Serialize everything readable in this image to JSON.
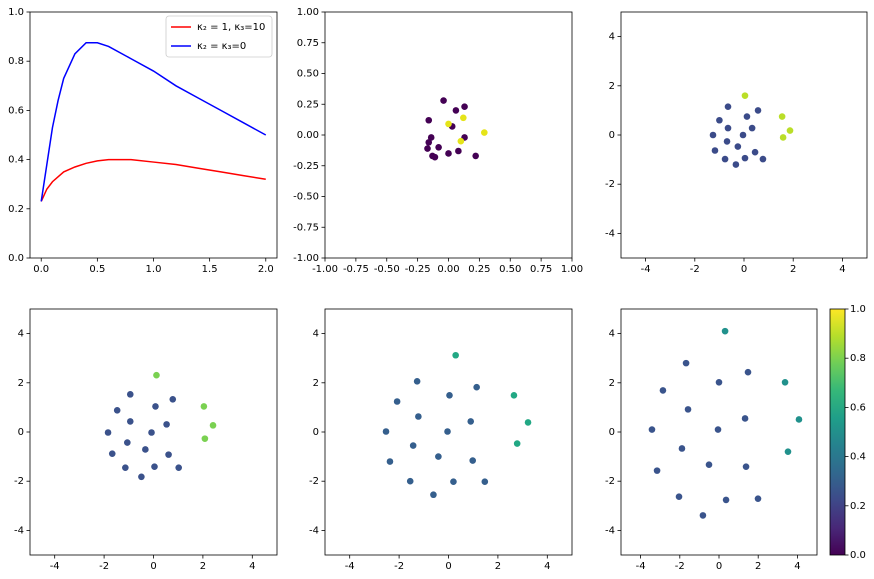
{
  "chart_data": [
    {
      "type": "line",
      "x": [
        0,
        0.05,
        0.1,
        0.15,
        0.2,
        0.3,
        0.4,
        0.5,
        0.6,
        0.8,
        1.0,
        1.2,
        1.4,
        1.6,
        1.8,
        2.0
      ],
      "series": [
        {
          "name": "κ₂ = 1, κ₃=10",
          "color": "#ff0000",
          "values": [
            0.23,
            0.28,
            0.31,
            0.33,
            0.35,
            0.37,
            0.385,
            0.395,
            0.4,
            0.4,
            0.39,
            0.38,
            0.365,
            0.35,
            0.335,
            0.32
          ]
        },
        {
          "name": "κ₂ = κ₃=0",
          "color": "#0000ff",
          "values": [
            0.23,
            0.38,
            0.53,
            0.64,
            0.73,
            0.83,
            0.875,
            0.875,
            0.86,
            0.81,
            0.76,
            0.7,
            0.65,
            0.6,
            0.55,
            0.5
          ]
        }
      ],
      "xlim": [
        -0.1,
        2.1
      ],
      "ylim": [
        0,
        1
      ],
      "xticks": [
        {
          "value": 0,
          "label": "0.0"
        },
        {
          "value": 0.5,
          "label": "0.5"
        },
        {
          "value": 1,
          "label": "1.0"
        },
        {
          "value": 1.5,
          "label": "1.5"
        },
        {
          "value": 2,
          "label": "2.0"
        }
      ],
      "yticks": [
        {
          "value": 0,
          "label": "0.0"
        },
        {
          "value": 0.2,
          "label": "0.2"
        },
        {
          "value": 0.4,
          "label": "0.4"
        },
        {
          "value": 0.6,
          "label": "0.6"
        },
        {
          "value": 0.8,
          "label": "0.8"
        },
        {
          "value": 1,
          "label": "1.0"
        }
      ],
      "legend": "upper right"
    },
    {
      "type": "scatter",
      "series": [
        {
          "color": "#440154",
          "x": [
            -0.04,
            0.06,
            0.13,
            -0.16,
            -0.14,
            -0.16,
            -0.17,
            -0.13,
            -0.11,
            -0.08,
            0.0,
            0.08,
            0.22,
            0.13,
            0.03
          ],
          "y": [
            0.28,
            0.2,
            0.23,
            0.12,
            -0.02,
            -0.06,
            -0.11,
            -0.17,
            -0.18,
            -0.1,
            -0.15,
            -0.13,
            -0.17,
            -0.02,
            0.07
          ]
        },
        {
          "color": "#e5e419",
          "x": [
            0.0,
            0.12,
            0.29,
            0.1
          ],
          "y": [
            0.09,
            0.14,
            0.02,
            -0.05
          ]
        }
      ],
      "xlim": [
        -1,
        1
      ],
      "ylim": [
        -1,
        1
      ],
      "xticks": [
        {
          "value": -1,
          "label": "-1.00"
        },
        {
          "value": -0.75,
          "label": "-0.75"
        },
        {
          "value": -0.5,
          "label": "-0.50"
        },
        {
          "value": -0.25,
          "label": "-0.25"
        },
        {
          "value": 0,
          "label": "0.00"
        },
        {
          "value": 0.25,
          "label": "0.25"
        },
        {
          "value": 0.5,
          "label": "0.50"
        },
        {
          "value": 0.75,
          "label": "0.75"
        },
        {
          "value": 1,
          "label": "1.00"
        }
      ],
      "yticks": [
        {
          "value": -1,
          "label": "-1.00"
        },
        {
          "value": -0.75,
          "label": "-0.75"
        },
        {
          "value": -0.5,
          "label": "-0.50"
        },
        {
          "value": -0.25,
          "label": "-0.25"
        },
        {
          "value": 0,
          "label": "0.00"
        },
        {
          "value": 0.25,
          "label": "0.25"
        },
        {
          "value": 0.5,
          "label": "0.50"
        },
        {
          "value": 0.75,
          "label": "0.75"
        },
        {
          "value": 1,
          "label": "1.00"
        }
      ]
    },
    {
      "type": "scatter",
      "series": [
        {
          "color": "#3b4b89",
          "x": [
            -0.65,
            0.57,
            -1.0,
            0.12,
            -0.65,
            0.33,
            -1.26,
            -0.04,
            -0.69,
            -1.18,
            -0.25,
            0.45,
            -0.77,
            0.04,
            0.77,
            -0.33
          ],
          "y": [
            1.15,
            1.0,
            0.6,
            0.75,
            0.28,
            0.28,
            0,
            0,
            -0.26,
            -0.63,
            -0.47,
            -0.7,
            -0.98,
            -0.94,
            -0.98,
            -1.2
          ]
        },
        {
          "color": "#bade28",
          "x": [
            0.04,
            1.55,
            1.87,
            1.59
          ],
          "y": [
            1.6,
            0.75,
            0.18,
            -0.1
          ]
        }
      ],
      "xlim": [
        -5,
        5
      ],
      "ylim": [
        -5,
        5
      ],
      "xticks": [
        -4,
        -2,
        0,
        2,
        4
      ],
      "yticks": [
        -4,
        -2,
        0,
        2,
        4
      ]
    },
    {
      "type": "scatter",
      "series": [
        {
          "color": "#3b528b",
          "x": [
            -0.94,
            -1.47,
            0.08,
            0.78,
            -0.94,
            0.53,
            -1.84,
            -0.08,
            -1.06,
            -0.33,
            -1.67,
            0.61,
            -1.14,
            0.04,
            1.02,
            -0.49
          ],
          "y": [
            1.53,
            0.88,
            1.04,
            1.33,
            0.43,
            0.31,
            -0.02,
            -0.02,
            -0.43,
            -0.71,
            -0.88,
            -0.92,
            -1.45,
            -1.41,
            -1.45,
            -1.82
          ]
        },
        {
          "color": "#7ad151",
          "x": [
            0.12,
            2.04,
            2.41,
            2.08
          ],
          "y": [
            2.31,
            1.04,
            0.27,
            -0.27
          ]
        }
      ],
      "xlim": [
        -5,
        5
      ],
      "ylim": [
        -5,
        5
      ],
      "xticks": [
        -4,
        -2,
        0,
        2,
        4
      ],
      "yticks": [
        -4,
        -2,
        0,
        2,
        4
      ]
    },
    {
      "type": "scatter",
      "series": [
        {
          "color": "#355f8d",
          "x": [
            -2.08,
            -1.27,
            0.04,
            1.14,
            -1.22,
            0.9,
            -2.53,
            -0.04,
            -1.43,
            -0.41,
            -2.37,
            0.98,
            -1.55,
            0.2,
            1.47,
            -0.61
          ],
          "y": [
            1.24,
            2.06,
            1.49,
            1.82,
            0.63,
            0.43,
            0.02,
            0.02,
            -0.55,
            -1.0,
            -1.2,
            -1.16,
            -2.0,
            -2.02,
            -2.02,
            -2.55
          ]
        },
        {
          "color": "#22a884",
          "x": [
            0.29,
            2.65,
            3.22,
            2.78
          ],
          "y": [
            3.12,
            1.49,
            0.39,
            -0.47
          ]
        }
      ],
      "xlim": [
        -5,
        5
      ],
      "ylim": [
        -5,
        5
      ],
      "xticks": [
        -4,
        -2,
        0,
        2,
        4
      ],
      "yticks": [
        -4,
        -2,
        0,
        2,
        4
      ]
    },
    {
      "type": "scatter",
      "series": [
        {
          "color": "#3a548c",
          "x": [
            -1.68,
            -2.86,
            0,
            1.48,
            -1.58,
            1.33,
            -3.42,
            -0.05,
            -1.89,
            -0.51,
            -3.16,
            1.38,
            -2.04,
            0.36,
            1.99,
            -0.82
          ],
          "y": [
            2.8,
            1.69,
            2.02,
            2.43,
            0.92,
            0.55,
            0.1,
            0.1,
            -0.67,
            -1.33,
            -1.57,
            -1.41,
            -2.63,
            -2.76,
            -2.71,
            -3.39
          ]
        },
        {
          "color": "#21918c",
          "x": [
            0.31,
            3.37,
            4.08,
            3.52
          ],
          "y": [
            4.1,
            2.02,
            0.51,
            -0.8
          ]
        }
      ],
      "xlim": [
        -5,
        5
      ],
      "ylim": [
        -5,
        5
      ],
      "xticks": [
        -4,
        -2,
        0,
        2,
        4
      ],
      "yticks": [
        -4,
        -2,
        0,
        2,
        4
      ],
      "colorbar": {
        "lim": [
          0,
          1
        ],
        "ticks": [
          {
            "value": 0,
            "label": "0.0"
          },
          {
            "value": 0.2,
            "label": "0.2"
          },
          {
            "value": 0.4,
            "label": "0.4"
          },
          {
            "value": 0.6,
            "label": "0.6"
          },
          {
            "value": 0.8,
            "label": "0.8"
          },
          {
            "value": 1,
            "label": "1.0"
          }
        ],
        "colors": [
          "#440154",
          "#482878",
          "#3e4989",
          "#31688e",
          "#26828e",
          "#1f9e89",
          "#35b779",
          "#6ece58",
          "#b5de2b",
          "#fde725"
        ]
      }
    }
  ]
}
